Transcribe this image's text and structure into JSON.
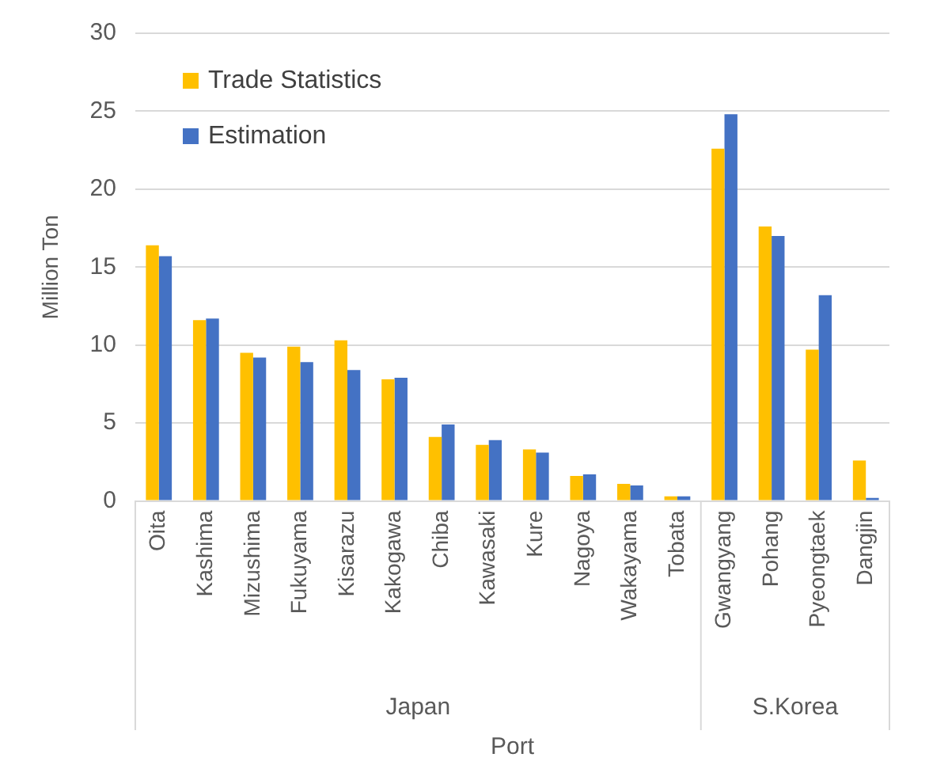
{
  "chart_data": {
    "type": "bar",
    "xlabel": "Port",
    "ylabel": "Million Ton",
    "categories": [
      "Oita",
      "Kashima",
      "Mizushima",
      "Fukuyama",
      "Kisarazu",
      "Kakogawa",
      "Chiba",
      "Kawasaki",
      "Kure",
      "Nagoya",
      "Wakayama",
      "Tobata",
      "Gwangyang",
      "Pohang",
      "Pyeongtaek",
      "Dangjin"
    ],
    "series": [
      {
        "name": "Trade Statistics",
        "color": "#ffc000",
        "values": [
          16.4,
          11.6,
          9.5,
          9.9,
          10.3,
          7.8,
          4.1,
          3.6,
          3.3,
          1.6,
          1.1,
          0.3,
          22.6,
          17.6,
          9.7,
          2.6
        ]
      },
      {
        "name": "Estimation",
        "color": "#4472c4",
        "values": [
          15.7,
          11.7,
          9.2,
          8.9,
          8.4,
          7.9,
          4.9,
          3.9,
          3.1,
          1.7,
          1.0,
          0.3,
          24.8,
          17.0,
          13.2,
          0.2
        ]
      }
    ],
    "ylim": [
      0,
      30
    ],
    "yticks": [
      0,
      5,
      10,
      15,
      20,
      25,
      30
    ],
    "grid": "y",
    "legend": "top left",
    "annotations": [
      "Japan",
      "S.Korea"
    ]
  }
}
